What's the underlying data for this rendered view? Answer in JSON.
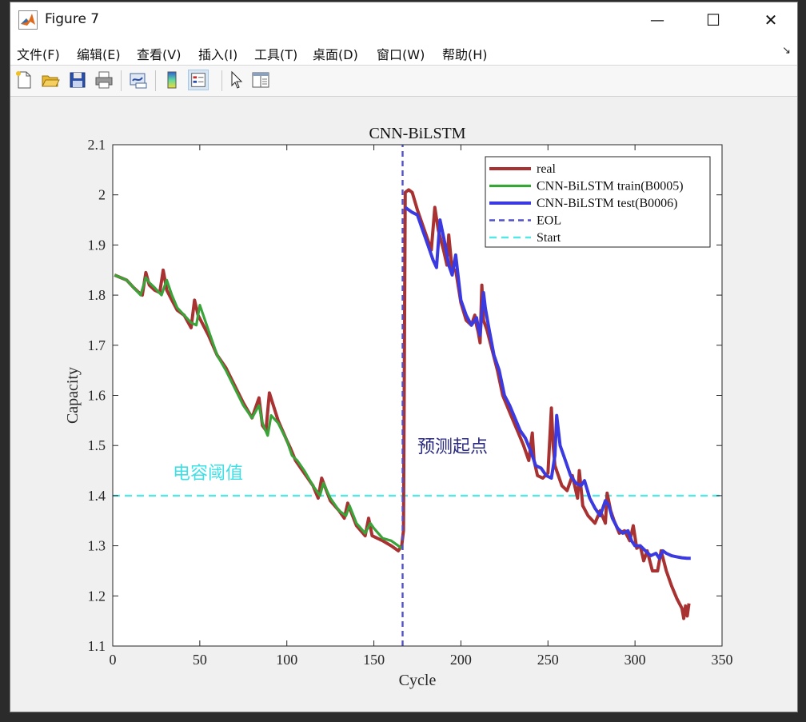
{
  "window": {
    "title": "Figure 7",
    "icon": "matlab-icon"
  },
  "controls": {
    "minimize": "—",
    "maximize": "☐",
    "close": "✕"
  },
  "menu": [
    "文件(F)",
    "编辑(E)",
    "查看(V)",
    "插入(I)",
    "工具(T)",
    "桌面(D)",
    "窗口(W)",
    "帮助(H)"
  ],
  "menu_arrow": "↘",
  "toolbar": [
    "new-figure-icon",
    "open-file-icon",
    "save-icon",
    "print-icon",
    "link-plot-icon",
    "colorbar-icon",
    "legend-icon",
    "pointer-icon",
    "property-inspector-icon"
  ],
  "annotations": {
    "threshold_label": "电容阈值",
    "start_label": "预测起点"
  },
  "colors": {
    "real": "#a83232",
    "train": "#3aa33a",
    "test": "#3a3ae0",
    "eol": "#5050c8",
    "start": "#55e6e6"
  },
  "chart_data": {
    "type": "line",
    "title": "CNN-BiLSTM",
    "xlabel": "Cycle",
    "ylabel": "Capacity",
    "xlim": [
      0,
      350
    ],
    "ylim": [
      1.1,
      2.1
    ],
    "xticks": [
      0,
      50,
      100,
      150,
      200,
      250,
      300,
      350
    ],
    "yticks": [
      1.1,
      1.2,
      1.3,
      1.4,
      1.5,
      1.6,
      1.7,
      1.8,
      1.9,
      2.0,
      2.1
    ],
    "ytick_labels": [
      "1.1",
      "1.2",
      "1.3",
      "1.4",
      "1.5",
      "1.6",
      "1.7",
      "1.8",
      "1.9",
      "2",
      "2.1"
    ],
    "grid": false,
    "legend_position": "top-right",
    "series": [
      {
        "name": "real",
        "style": "solid",
        "x": [
          1,
          8,
          12,
          15,
          17,
          19,
          21,
          24,
          27,
          29,
          31,
          34,
          37,
          41,
          45,
          47,
          49,
          55,
          60,
          65,
          70,
          75,
          80,
          84,
          86,
          88,
          90,
          95,
          100,
          102,
          105,
          110,
          115,
          118,
          120,
          125,
          130,
          133,
          135,
          140,
          145,
          147,
          149,
          155,
          160,
          164,
          166,
          167,
          168,
          170,
          172,
          175,
          178,
          181,
          183,
          185,
          187,
          190,
          192,
          193,
          195,
          197,
          200,
          203,
          206,
          208,
          209,
          210,
          211,
          212,
          213,
          215,
          218,
          221,
          224,
          227,
          230,
          233,
          236,
          239,
          241,
          242,
          244,
          247,
          250,
          252,
          253,
          254,
          256,
          258,
          261,
          264,
          267,
          268,
          270,
          273,
          277,
          280,
          283,
          284,
          286,
          288,
          291,
          294,
          297,
          299,
          301,
          303,
          305,
          307,
          310,
          313,
          315,
          318,
          321,
          324,
          327,
          328,
          329,
          330,
          331
        ],
        "y": [
          1.84,
          1.83,
          1.815,
          1.805,
          1.8,
          1.845,
          1.82,
          1.81,
          1.805,
          1.85,
          1.81,
          1.79,
          1.77,
          1.76,
          1.735,
          1.79,
          1.76,
          1.72,
          1.68,
          1.655,
          1.62,
          1.585,
          1.555,
          1.595,
          1.54,
          1.53,
          1.605,
          1.55,
          1.51,
          1.495,
          1.47,
          1.445,
          1.42,
          1.395,
          1.435,
          1.39,
          1.37,
          1.355,
          1.385,
          1.34,
          1.32,
          1.355,
          1.32,
          1.31,
          1.3,
          1.29,
          1.3,
          1.33,
          2.005,
          2.01,
          2.005,
          1.97,
          1.94,
          1.91,
          1.89,
          1.975,
          1.93,
          1.89,
          1.86,
          1.92,
          1.85,
          1.85,
          1.785,
          1.75,
          1.74,
          1.76,
          1.74,
          1.725,
          1.705,
          1.82,
          1.75,
          1.73,
          1.69,
          1.65,
          1.6,
          1.575,
          1.55,
          1.525,
          1.5,
          1.47,
          1.525,
          1.47,
          1.44,
          1.435,
          1.445,
          1.575,
          1.5,
          1.46,
          1.44,
          1.42,
          1.41,
          1.44,
          1.395,
          1.45,
          1.38,
          1.36,
          1.345,
          1.37,
          1.345,
          1.405,
          1.37,
          1.35,
          1.325,
          1.33,
          1.31,
          1.34,
          1.295,
          1.3,
          1.27,
          1.29,
          1.25,
          1.25,
          1.29,
          1.25,
          1.22,
          1.195,
          1.175,
          1.155,
          1.18,
          1.16,
          1.185
        ]
      },
      {
        "name": "CNN-BiLSTM train(B0005)",
        "style": "solid",
        "x": [
          1,
          8,
          12,
          16,
          19,
          21,
          24,
          28,
          31,
          34,
          37,
          41,
          45,
          48,
          50,
          55,
          60,
          65,
          70,
          75,
          80,
          84,
          86,
          89,
          91,
          95,
          100,
          103,
          106,
          110,
          115,
          119,
          121,
          125,
          130,
          134,
          136,
          140,
          145,
          148,
          150,
          155,
          160,
          164,
          166
        ],
        "y": [
          1.84,
          1.83,
          1.815,
          1.8,
          1.835,
          1.825,
          1.815,
          1.8,
          1.83,
          1.8,
          1.775,
          1.76,
          1.745,
          1.74,
          1.78,
          1.73,
          1.68,
          1.65,
          1.615,
          1.58,
          1.555,
          1.58,
          1.545,
          1.52,
          1.56,
          1.545,
          1.51,
          1.48,
          1.47,
          1.45,
          1.42,
          1.4,
          1.425,
          1.395,
          1.37,
          1.36,
          1.38,
          1.345,
          1.325,
          1.345,
          1.335,
          1.315,
          1.31,
          1.3,
          1.295
        ]
      },
      {
        "name": "CNN-BiLSTM test(B0006)",
        "style": "solid",
        "x": [
          168,
          170,
          172,
          175,
          178,
          181,
          184,
          186,
          188,
          191,
          193,
          195,
          197,
          200,
          203,
          206,
          209,
          210,
          211,
          213,
          214,
          216,
          219,
          222,
          225,
          228,
          231,
          234,
          237,
          240,
          243,
          246,
          249,
          252,
          254,
          255,
          257,
          260,
          263,
          266,
          269,
          271,
          274,
          277,
          280,
          283,
          285,
          287,
          290,
          293,
          296,
          298,
          300,
          303,
          306,
          309,
          312,
          314,
          316,
          318,
          321,
          324,
          327,
          330,
          332
        ],
        "y": [
          1.975,
          1.97,
          1.965,
          1.96,
          1.93,
          1.9,
          1.87,
          1.855,
          1.95,
          1.9,
          1.86,
          1.84,
          1.88,
          1.79,
          1.76,
          1.74,
          1.755,
          1.735,
          1.72,
          1.805,
          1.775,
          1.735,
          1.68,
          1.65,
          1.6,
          1.58,
          1.555,
          1.53,
          1.515,
          1.49,
          1.46,
          1.455,
          1.44,
          1.435,
          1.48,
          1.56,
          1.5,
          1.47,
          1.44,
          1.425,
          1.42,
          1.43,
          1.395,
          1.375,
          1.36,
          1.39,
          1.38,
          1.355,
          1.335,
          1.325,
          1.33,
          1.31,
          1.3,
          1.3,
          1.29,
          1.28,
          1.285,
          1.275,
          1.29,
          1.285,
          1.28,
          1.278,
          1.276,
          1.275,
          1.275
        ]
      },
      {
        "name": "EOL",
        "style": "dashed",
        "x": [
          166.5,
          166.5
        ],
        "y": [
          1.1,
          2.1
        ]
      },
      {
        "name": "Start",
        "style": "dashed",
        "x": [
          0,
          350
        ],
        "y": [
          1.4,
          1.4
        ]
      }
    ]
  }
}
